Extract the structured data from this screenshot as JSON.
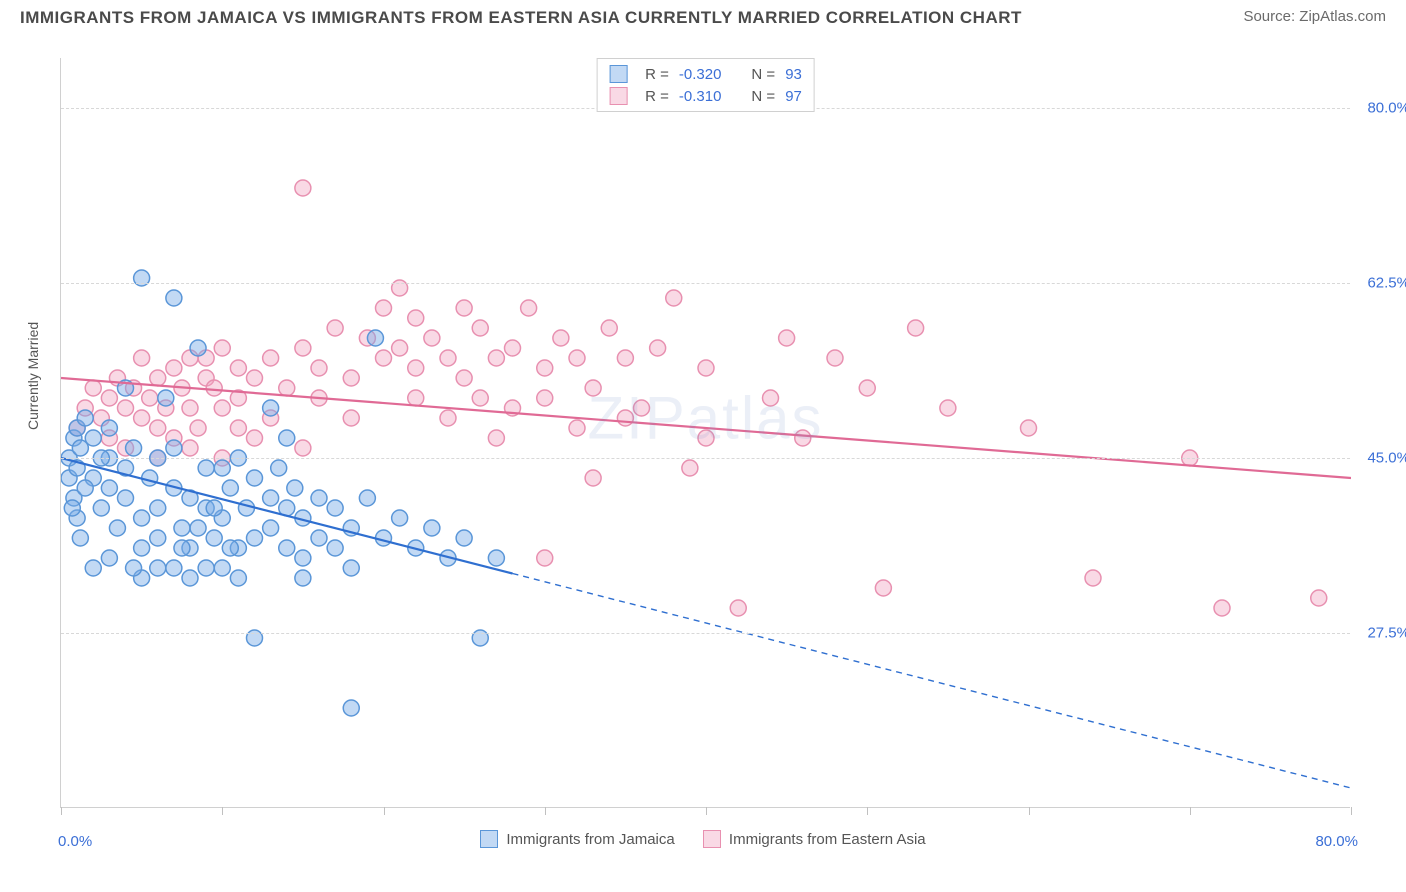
{
  "title": "IMMIGRANTS FROM JAMAICA VS IMMIGRANTS FROM EASTERN ASIA CURRENTLY MARRIED CORRELATION CHART",
  "source_label": "Source: ZipAtlas.com",
  "watermark": "ZIPatlas",
  "y_axis_label": "Currently Married",
  "chart": {
    "type": "scatter",
    "xlim": [
      0,
      80
    ],
    "ylim": [
      10,
      85
    ],
    "x_min_label": "0.0%",
    "x_max_label": "80.0%",
    "y_ticks": [
      27.5,
      45.0,
      62.5,
      80.0
    ],
    "y_tick_labels": [
      "27.5%",
      "45.0%",
      "62.5%",
      "80.0%"
    ],
    "x_tick_positions": [
      0,
      10,
      20,
      30,
      40,
      50,
      60,
      70,
      80
    ],
    "background_color": "#ffffff",
    "grid_color": "#d8d8d8",
    "grid_dash": true,
    "marker_radius": 8,
    "marker_stroke_width": 1.5,
    "line_width": 2.2
  },
  "series": {
    "jamaica": {
      "label": "Immigrants from Jamaica",
      "R": "-0.320",
      "N": "93",
      "fill_color": "rgba(120,170,230,0.45)",
      "stroke_color": "#5a96d8",
      "line_color": "#2f6fd0",
      "trend": {
        "x1": 0,
        "y1": 45,
        "x2": 80,
        "y2": 12,
        "solid_until_x": 28
      },
      "points": [
        [
          0.5,
          45
        ],
        [
          0.8,
          47
        ],
        [
          0.5,
          43
        ],
        [
          1,
          44
        ],
        [
          1,
          48
        ],
        [
          1.2,
          46
        ],
        [
          1.5,
          49
        ],
        [
          0.8,
          41
        ],
        [
          1,
          39
        ],
        [
          1.2,
          37
        ],
        [
          2,
          47
        ],
        [
          2,
          43
        ],
        [
          2.5,
          40
        ],
        [
          3,
          48
        ],
        [
          3,
          45
        ],
        [
          3,
          42
        ],
        [
          3.5,
          38
        ],
        [
          4,
          44
        ],
        [
          4,
          41
        ],
        [
          4.5,
          46
        ],
        [
          5,
          63
        ],
        [
          5,
          39
        ],
        [
          5,
          36
        ],
        [
          5.5,
          43
        ],
        [
          6,
          45
        ],
        [
          6,
          40
        ],
        [
          6,
          34
        ],
        [
          7,
          61
        ],
        [
          7,
          46
        ],
        [
          7,
          42
        ],
        [
          7.5,
          38
        ],
        [
          8,
          41
        ],
        [
          8,
          36
        ],
        [
          8.5,
          56
        ],
        [
          9,
          44
        ],
        [
          9,
          40
        ],
        [
          9.5,
          37
        ],
        [
          10,
          44
        ],
        [
          10,
          39
        ],
        [
          10.5,
          42
        ],
        [
          11,
          45
        ],
        [
          11,
          36
        ],
        [
          11.5,
          40
        ],
        [
          12,
          43
        ],
        [
          12,
          37
        ],
        [
          12,
          27
        ],
        [
          13,
          41
        ],
        [
          13,
          38
        ],
        [
          13.5,
          44
        ],
        [
          14,
          40
        ],
        [
          14,
          36
        ],
        [
          14.5,
          42
        ],
        [
          15,
          39
        ],
        [
          15,
          35
        ],
        [
          15,
          33
        ],
        [
          16,
          41
        ],
        [
          16,
          37
        ],
        [
          17,
          40
        ],
        [
          17,
          36
        ],
        [
          18,
          38
        ],
        [
          18,
          34
        ],
        [
          18,
          20
        ],
        [
          19,
          41
        ],
        [
          19.5,
          57
        ],
        [
          20,
          37
        ],
        [
          21,
          39
        ],
        [
          22,
          36
        ],
        [
          23,
          38
        ],
        [
          24,
          35
        ],
        [
          25,
          37
        ],
        [
          26,
          27
        ],
        [
          27,
          35
        ],
        [
          14,
          47
        ],
        [
          13,
          50
        ],
        [
          6.5,
          51
        ],
        [
          4,
          52
        ],
        [
          3,
          35
        ],
        [
          2,
          34
        ],
        [
          5,
          33
        ],
        [
          8,
          33
        ],
        [
          9,
          34
        ],
        [
          10,
          34
        ],
        [
          11,
          33
        ],
        [
          7,
          34
        ],
        [
          4.5,
          34
        ],
        [
          6,
          37
        ],
        [
          7.5,
          36
        ],
        [
          8.5,
          38
        ],
        [
          9.5,
          40
        ],
        [
          10.5,
          36
        ],
        [
          2.5,
          45
        ],
        [
          1.5,
          42
        ],
        [
          0.7,
          40
        ]
      ]
    },
    "eastern_asia": {
      "label": "Immigrants from Eastern Asia",
      "R": "-0.310",
      "N": "97",
      "fill_color": "rgba(240,160,190,0.40)",
      "stroke_color": "#e890b0",
      "line_color": "#e06a95",
      "trend": {
        "x1": 0,
        "y1": 53,
        "x2": 80,
        "y2": 43,
        "solid_until_x": 80
      },
      "points": [
        [
          1,
          48
        ],
        [
          1.5,
          50
        ],
        [
          2,
          52
        ],
        [
          2.5,
          49
        ],
        [
          3,
          51
        ],
        [
          3,
          47
        ],
        [
          3.5,
          53
        ],
        [
          4,
          50
        ],
        [
          4,
          46
        ],
        [
          4.5,
          52
        ],
        [
          5,
          55
        ],
        [
          5,
          49
        ],
        [
          5.5,
          51
        ],
        [
          6,
          53
        ],
        [
          6,
          48
        ],
        [
          6.5,
          50
        ],
        [
          7,
          54
        ],
        [
          7,
          47
        ],
        [
          7.5,
          52
        ],
        [
          8,
          55
        ],
        [
          8,
          50
        ],
        [
          8.5,
          48
        ],
        [
          9,
          53
        ],
        [
          9,
          55
        ],
        [
          9.5,
          52
        ],
        [
          10,
          56
        ],
        [
          10,
          50
        ],
        [
          11,
          54
        ],
        [
          11,
          48
        ],
        [
          12,
          53
        ],
        [
          13,
          55
        ],
        [
          14,
          52
        ],
        [
          15,
          56
        ],
        [
          15,
          72
        ],
        [
          16,
          54
        ],
        [
          17,
          58
        ],
        [
          18,
          53
        ],
        [
          19,
          57
        ],
        [
          20,
          55
        ],
        [
          20,
          60
        ],
        [
          21,
          56
        ],
        [
          21,
          62
        ],
        [
          22,
          54
        ],
        [
          22,
          59
        ],
        [
          23,
          57
        ],
        [
          24,
          55
        ],
        [
          25,
          60
        ],
        [
          25,
          53
        ],
        [
          26,
          58
        ],
        [
          27,
          55
        ],
        [
          27,
          47
        ],
        [
          28,
          56
        ],
        [
          29,
          60
        ],
        [
          30,
          54
        ],
        [
          30,
          35
        ],
        [
          31,
          57
        ],
        [
          32,
          55
        ],
        [
          32,
          48
        ],
        [
          33,
          52
        ],
        [
          33,
          43
        ],
        [
          34,
          58
        ],
        [
          35,
          55
        ],
        [
          36,
          50
        ],
        [
          37,
          56
        ],
        [
          38,
          61
        ],
        [
          39,
          44
        ],
        [
          40,
          54
        ],
        [
          42,
          30
        ],
        [
          44,
          51
        ],
        [
          45,
          57
        ],
        [
          46,
          47
        ],
        [
          48,
          55
        ],
        [
          50,
          52
        ],
        [
          51,
          32
        ],
        [
          53,
          58
        ],
        [
          55,
          50
        ],
        [
          60,
          48
        ],
        [
          64,
          33
        ],
        [
          70,
          45
        ],
        [
          72,
          30
        ],
        [
          78,
          31
        ],
        [
          15,
          46
        ],
        [
          12,
          47
        ],
        [
          10,
          45
        ],
        [
          8,
          46
        ],
        [
          6,
          45
        ],
        [
          11,
          51
        ],
        [
          13,
          49
        ],
        [
          16,
          51
        ],
        [
          18,
          49
        ],
        [
          30,
          51
        ],
        [
          35,
          49
        ],
        [
          40,
          47
        ],
        [
          26,
          51
        ],
        [
          28,
          50
        ],
        [
          24,
          49
        ],
        [
          22,
          51
        ]
      ]
    }
  },
  "legend_stats": {
    "R_prefix": "R =",
    "N_prefix": "N ="
  }
}
